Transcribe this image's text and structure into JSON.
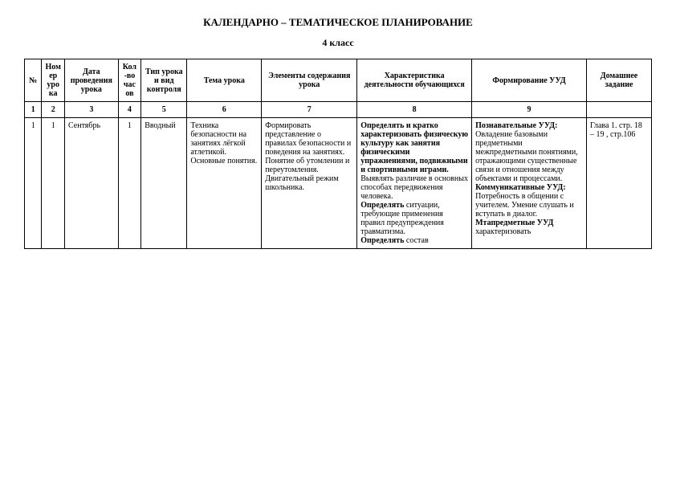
{
  "title": "КАЛЕНДАРНО – ТЕМАТИЧЕСКОЕ ПЛАНИРОВАНИЕ",
  "subtitle": "4 класс",
  "headers": {
    "c1": "№",
    "c2": "Номер урока",
    "c3": "Дата проведения урока",
    "c4": "Кол-во часов",
    "c5": "Тип урока и вид контроля",
    "c6": "Тема урока",
    "c7": "Элементы содержания урока",
    "c8": "Характеристика деятельности обучающихся",
    "c9": "Формирование УУД",
    "c10": "Домашнее задание"
  },
  "numrow": {
    "c1": "1",
    "c2": "2",
    "c3": "3",
    "c4": "4",
    "c5": "5",
    "c6": "6",
    "c7": "7",
    "c8": "8",
    "c9": "9",
    "c10": ""
  },
  "row": {
    "c1": "1",
    "c2": "1",
    "c3": "Сентябрь",
    "c4": "1",
    "c5": "Вводный",
    "c6": "Техника безопасности на занятиях лёгкой атлетикой. Основные понятия.",
    "c7": "Формировать представление о правилах безопасности и поведения на занятиях. Понятие об утомлении и переутомления. Двигательный режим школьника.",
    "c8_p1": "Определять и кратко характеризовать физическую культуру как занятия физическими упражнениями, подвижными и спортивными играми.",
    "c8_p2": "Выявлять различие в основных способах передвижения человека.",
    "c8_p3a": "Определять",
    "c8_p3b": " ситуации, требующие применения правил предупреждения травматизма.",
    "c8_p4a": "Определять",
    "c8_p4b": " состав",
    "c9_h1": "Познавательные УУД:",
    "c9_t1": "Овладение базовыми предметными межпредметными понятиями, отражающими существенные связи и отношения между объектами и процессами.",
    "c9_h2": "Коммуникативные УУД:",
    "c9_t2": "Потребность в общении с учителем. Умение слушать и вступать в диалог.",
    "c9_h3": "Мтапредметные УУД",
    "c9_t3": "характеризовать",
    "c10": "Глава 1. стр. 18 – 19 , стр.106"
  }
}
